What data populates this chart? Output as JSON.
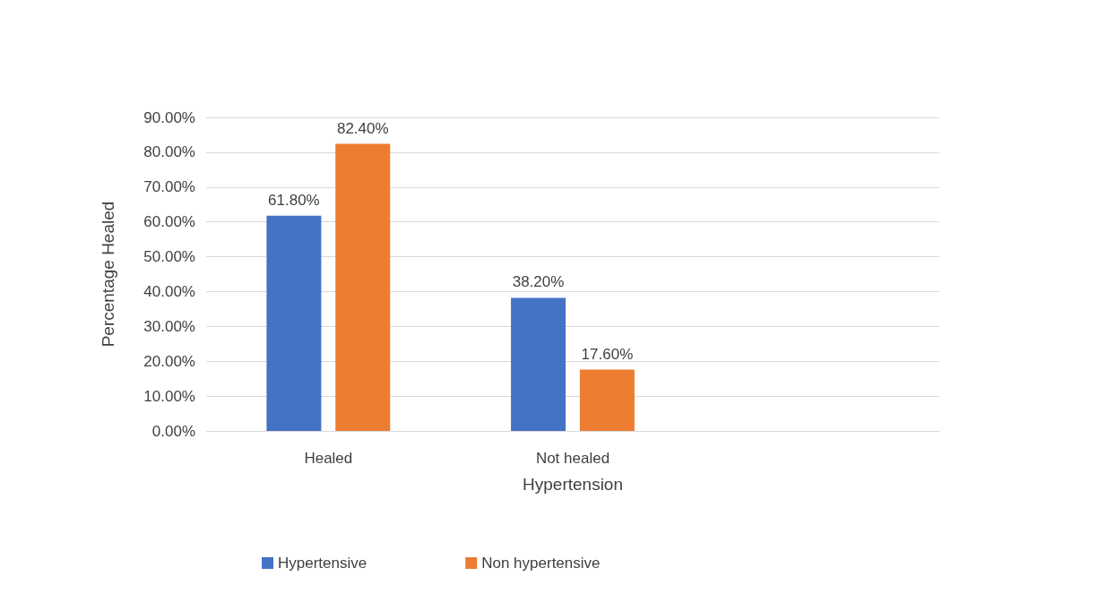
{
  "chart_data": {
    "type": "bar",
    "xlabel": "Hypertension",
    "ylabel": "Percentage Healed",
    "categories": [
      "Healed",
      "Not healed",
      null
    ],
    "series": [
      {
        "name": "Hypertensive",
        "color": "#4472c4",
        "values": [
          61.8,
          38.2,
          null
        ],
        "value_labels": [
          "61.80%",
          "38.20%",
          null
        ]
      },
      {
        "name": "Non hypertensive",
        "color": "#ed7d31",
        "values": [
          82.4,
          17.6,
          null
        ],
        "value_labels": [
          "82.40%",
          "17.60%",
          null
        ]
      }
    ],
    "ylim": [
      0,
      90
    ],
    "yticks": [
      {
        "value": 0,
        "label": "0.00%"
      },
      {
        "value": 10,
        "label": "10.00%"
      },
      {
        "value": 20,
        "label": "20.00%"
      },
      {
        "value": 30,
        "label": "30.00%"
      },
      {
        "value": 40,
        "label": "40.00%"
      },
      {
        "value": 50,
        "label": "50.00%"
      },
      {
        "value": 60,
        "label": "60.00%"
      },
      {
        "value": 70,
        "label": "70.00%"
      },
      {
        "value": 80,
        "label": "80.00%"
      },
      {
        "value": 90,
        "label": "90.00%"
      }
    ],
    "grid": "y",
    "legend": "bottom"
  }
}
